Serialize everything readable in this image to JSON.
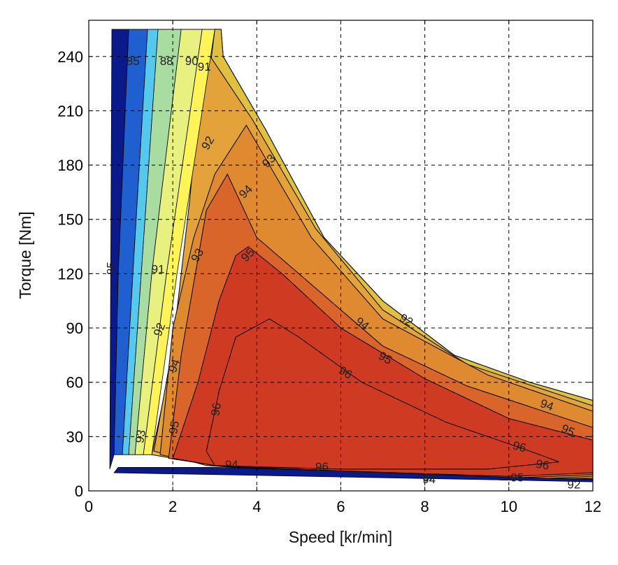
{
  "chart_data": {
    "type": "contour",
    "xlabel": "Speed [kr/min]",
    "ylabel": "Torque [Nm]",
    "xlim": [
      0,
      12
    ],
    "ylim": [
      0,
      260
    ],
    "xticks": [
      0,
      2,
      4,
      6,
      8,
      10,
      12
    ],
    "yticks": [
      0,
      30,
      60,
      90,
      120,
      150,
      180,
      210,
      240
    ],
    "grid": true,
    "colors": {
      "eff_85": "#0a1a8a",
      "eff_88": "#1f5fd0",
      "eff_89": "#55c8ee",
      "eff_90": "#a9dca0",
      "eff_91": "#e8f080",
      "eff_91b": "#fff35a",
      "eff_92": "#e0c040",
      "eff_93": "#e3a33a",
      "eff_94": "#df8a30",
      "eff_95": "#d9652a",
      "eff_96": "#cf3b22",
      "outline": "#000000"
    },
    "torque_envelope": [
      {
        "x": 0.6,
        "y": 255
      },
      {
        "x": 3.15,
        "y": 255
      },
      {
        "x": 3.2,
        "y": 240
      },
      {
        "x": 4.2,
        "y": 200
      },
      {
        "x": 5.6,
        "y": 140
      },
      {
        "x": 7.0,
        "y": 105
      },
      {
        "x": 8.7,
        "y": 75
      },
      {
        "x": 10.5,
        "y": 60
      },
      {
        "x": 12.0,
        "y": 50
      }
    ],
    "regions": [
      {
        "level": 92,
        "points": [
          {
            "x": 3.15,
            "y": 255
          },
          {
            "x": 3.2,
            "y": 240
          },
          {
            "x": 4.2,
            "y": 200
          },
          {
            "x": 5.6,
            "y": 140
          },
          {
            "x": 7.0,
            "y": 105
          },
          {
            "x": 8.7,
            "y": 75
          },
          {
            "x": 10.5,
            "y": 60
          },
          {
            "x": 12,
            "y": 50
          },
          {
            "x": 12,
            "y": 7
          },
          {
            "x": 10,
            "y": 6
          },
          {
            "x": 6,
            "y": 9
          },
          {
            "x": 3,
            "y": 14
          },
          {
            "x": 1.5,
            "y": 20
          },
          {
            "x": 2.0,
            "y": 75
          },
          {
            "x": 2.5,
            "y": 160
          },
          {
            "x": 3.0,
            "y": 255
          }
        ]
      },
      {
        "level": 93,
        "points": [
          {
            "x": 2.75,
            "y": 245
          },
          {
            "x": 3.9,
            "y": 205
          },
          {
            "x": 5.4,
            "y": 145
          },
          {
            "x": 7.0,
            "y": 100
          },
          {
            "x": 9.0,
            "y": 70
          },
          {
            "x": 12,
            "y": 47
          },
          {
            "x": 12,
            "y": 7
          },
          {
            "x": 10,
            "y": 6
          },
          {
            "x": 6,
            "y": 9
          },
          {
            "x": 2.8,
            "y": 14
          },
          {
            "x": 1.55,
            "y": 22
          },
          {
            "x": 2.0,
            "y": 80
          },
          {
            "x": 2.4,
            "y": 160
          }
        ]
      },
      {
        "level": 94,
        "points": [
          {
            "x": 3.75,
            "y": 202
          },
          {
            "x": 5.3,
            "y": 140
          },
          {
            "x": 7.0,
            "y": 95
          },
          {
            "x": 9.5,
            "y": 64
          },
          {
            "x": 12,
            "y": 44
          },
          {
            "x": 12,
            "y": 8
          },
          {
            "x": 10,
            "y": 6
          },
          {
            "x": 6,
            "y": 9
          },
          {
            "x": 3,
            "y": 14
          },
          {
            "x": 1.7,
            "y": 20
          },
          {
            "x": 2.0,
            "y": 90
          },
          {
            "x": 2.5,
            "y": 140
          },
          {
            "x": 3.0,
            "y": 175
          }
        ]
      },
      {
        "level": 95,
        "points": [
          {
            "x": 2.8,
            "y": 155
          },
          {
            "x": 3.3,
            "y": 175
          },
          {
            "x": 4.0,
            "y": 140
          },
          {
            "x": 5.5,
            "y": 110
          },
          {
            "x": 7.0,
            "y": 80
          },
          {
            "x": 9.0,
            "y": 58
          },
          {
            "x": 12,
            "y": 35
          },
          {
            "x": 12,
            "y": 9
          },
          {
            "x": 10,
            "y": 7
          },
          {
            "x": 6,
            "y": 10
          },
          {
            "x": 3,
            "y": 14
          },
          {
            "x": 1.9,
            "y": 18
          },
          {
            "x": 2.2,
            "y": 75
          }
        ]
      },
      {
        "level": 96,
        "points": [
          {
            "x": 3.5,
            "y": 130
          },
          {
            "x": 3.8,
            "y": 135
          },
          {
            "x": 4.6,
            "y": 120
          },
          {
            "x": 6.0,
            "y": 90
          },
          {
            "x": 8.0,
            "y": 62
          },
          {
            "x": 10.0,
            "y": 40
          },
          {
            "x": 12,
            "y": 28
          },
          {
            "x": 12,
            "y": 10
          },
          {
            "x": 10,
            "y": 8
          },
          {
            "x": 6,
            "y": 11
          },
          {
            "x": 3,
            "y": 14
          },
          {
            "x": 2.0,
            "y": 18
          },
          {
            "x": 2.6,
            "y": 60
          },
          {
            "x": 3.1,
            "y": 105
          }
        ]
      },
      {
        "level": 96.5,
        "points": [
          {
            "x": 3.1,
            "y": 55
          },
          {
            "x": 3.5,
            "y": 85
          },
          {
            "x": 4.3,
            "y": 95
          },
          {
            "x": 5.0,
            "y": 85
          },
          {
            "x": 6.5,
            "y": 60
          },
          {
            "x": 8.5,
            "y": 38
          },
          {
            "x": 10.5,
            "y": 22
          },
          {
            "x": 11.2,
            "y": 16
          },
          {
            "x": 9.5,
            "y": 12
          },
          {
            "x": 6,
            "y": 12
          },
          {
            "x": 3,
            "y": 14
          },
          {
            "x": 2.8,
            "y": 22
          }
        ]
      }
    ],
    "low_bands": [
      {
        "level": 85,
        "points": [
          {
            "x": 0.5,
            "y": 12
          },
          {
            "x": 0.55,
            "y": 255
          },
          {
            "x": 0.95,
            "y": 255
          },
          {
            "x": 0.7,
            "y": 120
          },
          {
            "x": 0.6,
            "y": 20
          }
        ]
      },
      {
        "level": 88,
        "points": [
          {
            "x": 0.6,
            "y": 20
          },
          {
            "x": 0.7,
            "y": 120
          },
          {
            "x": 0.95,
            "y": 255
          },
          {
            "x": 1.4,
            "y": 255
          },
          {
            "x": 1.05,
            "y": 120
          },
          {
            "x": 0.8,
            "y": 20
          }
        ]
      },
      {
        "level": 89,
        "points": [
          {
            "x": 0.8,
            "y": 20
          },
          {
            "x": 1.05,
            "y": 120
          },
          {
            "x": 1.4,
            "y": 255
          },
          {
            "x": 1.65,
            "y": 255
          },
          {
            "x": 1.25,
            "y": 120
          },
          {
            "x": 0.95,
            "y": 20
          }
        ]
      },
      {
        "level": 90,
        "points": [
          {
            "x": 0.95,
            "y": 20
          },
          {
            "x": 1.25,
            "y": 120
          },
          {
            "x": 1.65,
            "y": 255
          },
          {
            "x": 2.2,
            "y": 255
          },
          {
            "x": 1.5,
            "y": 120
          },
          {
            "x": 1.1,
            "y": 20
          }
        ]
      },
      {
        "level": 91,
        "points": [
          {
            "x": 1.1,
            "y": 20
          },
          {
            "x": 1.5,
            "y": 120
          },
          {
            "x": 2.2,
            "y": 255
          },
          {
            "x": 2.7,
            "y": 255
          },
          {
            "x": 1.85,
            "y": 120
          },
          {
            "x": 1.3,
            "y": 20
          }
        ]
      },
      {
        "level": 91.5,
        "points": [
          {
            "x": 1.3,
            "y": 20
          },
          {
            "x": 1.85,
            "y": 120
          },
          {
            "x": 2.7,
            "y": 255
          },
          {
            "x": 3.0,
            "y": 255
          },
          {
            "x": 2.1,
            "y": 120
          },
          {
            "x": 1.5,
            "y": 20
          }
        ]
      },
      {
        "level": 85,
        "points": [
          {
            "x": 0.6,
            "y": 10
          },
          {
            "x": 10,
            "y": 6
          },
          {
            "x": 12,
            "y": 5
          },
          {
            "x": 12,
            "y": 6.5
          },
          {
            "x": 10,
            "y": 7.5
          },
          {
            "x": 6,
            "y": 11
          },
          {
            "x": 3,
            "y": 13
          },
          {
            "x": 0.7,
            "y": 13
          }
        ]
      }
    ],
    "contour_labels": [
      {
        "text": "92",
        "x": 2.85,
        "y": 192,
        "angle": -60
      },
      {
        "text": "93",
        "x": 2.6,
        "y": 130,
        "angle": -60
      },
      {
        "text": "94",
        "x": 3.75,
        "y": 165,
        "angle": -45
      },
      {
        "text": "95",
        "x": 3.8,
        "y": 130,
        "angle": -45
      },
      {
        "text": "92",
        "x": 1.7,
        "y": 89,
        "angle": -70
      },
      {
        "text": "94",
        "x": 2.05,
        "y": 69,
        "angle": -70
      },
      {
        "text": "95",
        "x": 2.05,
        "y": 35,
        "angle": -80
      },
      {
        "text": "96",
        "x": 3.05,
        "y": 45,
        "angle": -80
      },
      {
        "text": "93",
        "x": 1.25,
        "y": 30,
        "angle": -80
      },
      {
        "text": "96",
        "x": 6.1,
        "y": 65,
        "angle": 30
      },
      {
        "text": "94",
        "x": 6.5,
        "y": 92,
        "angle": 35
      },
      {
        "text": "95",
        "x": 7.05,
        "y": 73,
        "angle": 30
      },
      {
        "text": "92",
        "x": 7.55,
        "y": 94,
        "angle": 30
      },
      {
        "text": "94",
        "x": 10.9,
        "y": 47,
        "angle": 20
      },
      {
        "text": "95",
        "x": 11.4,
        "y": 33,
        "angle": 25
      },
      {
        "text": "96",
        "x": 10.25,
        "y": 24,
        "angle": 15
      },
      {
        "text": "96",
        "x": 10.8,
        "y": 14,
        "angle": 10
      },
      {
        "text": "92",
        "x": 8.1,
        "y": 7,
        "angle": 0
      },
      {
        "text": "94",
        "x": 8.1,
        "y": 6,
        "angle": 0
      },
      {
        "text": "95",
        "x": 10.2,
        "y": 7,
        "angle": 0
      },
      {
        "text": "92",
        "x": 11.55,
        "y": 3,
        "angle": 0
      },
      {
        "text": "91",
        "x": 2.75,
        "y": 234,
        "angle": 0
      },
      {
        "text": "90",
        "x": 2.45,
        "y": 237,
        "angle": 0
      },
      {
        "text": "88",
        "x": 1.85,
        "y": 237,
        "angle": 0
      },
      {
        "text": "85",
        "x": 1.05,
        "y": 237,
        "angle": 0
      },
      {
        "text": "85",
        "x": 0.55,
        "y": 123,
        "angle": -90
      },
      {
        "text": "91",
        "x": 1.65,
        "y": 122,
        "angle": 0
      },
      {
        "text": "93",
        "x": 4.3,
        "y": 182,
        "angle": -45
      },
      {
        "text": "96",
        "x": 5.55,
        "y": 13,
        "angle": 0
      },
      {
        "text": "94",
        "x": 3.4,
        "y": 14,
        "angle": 0
      }
    ]
  }
}
